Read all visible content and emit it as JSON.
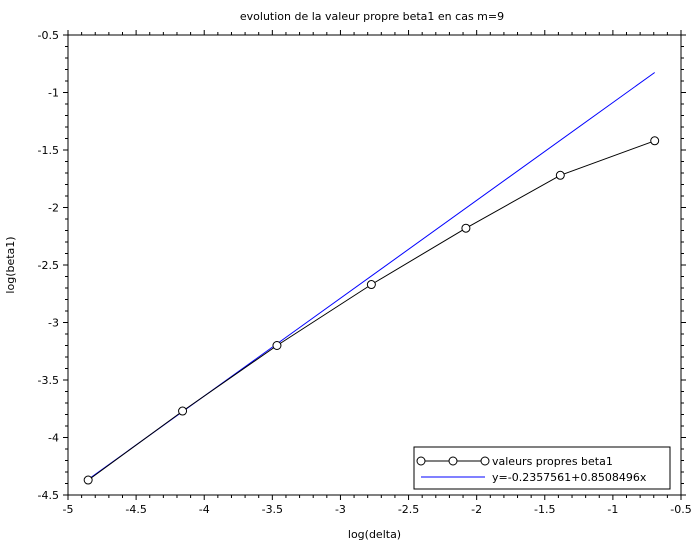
{
  "chart_data": {
    "type": "line",
    "title": "evolution de la valeur propre beta1 en cas m=9",
    "xlabel": "log(delta)",
    "ylabel": "log(beta1)",
    "xlim": [
      -5,
      -0.5
    ],
    "ylim": [
      -4.5,
      -0.5
    ],
    "x_ticks": [
      "-5",
      "-4.5",
      "-4",
      "-3.5",
      "-3",
      "-2.5",
      "-2",
      "-1.5",
      "-1",
      "-0.5"
    ],
    "y_ticks": [
      "-0.5",
      "-1",
      "-1.5",
      "-2",
      "-2.5",
      "-3",
      "-3.5",
      "-4",
      "-4.5"
    ],
    "grid": false,
    "legend_position": "bottom-right",
    "series": [
      {
        "name": "valeurs propres beta1",
        "color": "#000000",
        "marker": "open-circle",
        "x": [
          -4.852,
          -4.159,
          -3.466,
          -2.773,
          -2.079,
          -1.386,
          -0.693
        ],
        "y": [
          -4.37,
          -3.77,
          -3.2,
          -2.67,
          -2.18,
          -1.72,
          -1.42
        ]
      },
      {
        "name": "y=-0.2357561+0.8508496x",
        "color": "#0000ff",
        "marker": "none",
        "x": [
          -4.852,
          -0.693
        ],
        "y": [
          -4.364,
          -0.826
        ]
      }
    ]
  }
}
